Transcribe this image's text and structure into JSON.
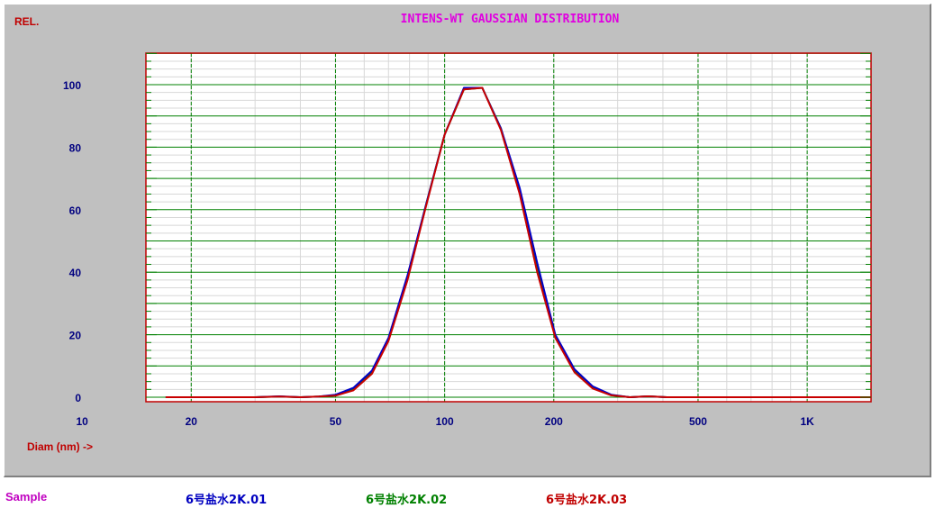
{
  "chart_data": {
    "type": "line",
    "title": "INTENS-WT GAUSSIAN DISTRIBUTION",
    "ylabel": "REL.",
    "xlabel": "Diam (nm) ->",
    "xscale": "log",
    "xlim": [
      15,
      1500
    ],
    "ylim": [
      0,
      110
    ],
    "x_ticks": [
      {
        "value": 10,
        "label": "10"
      },
      {
        "value": 20,
        "label": "20"
      },
      {
        "value": 50,
        "label": "50"
      },
      {
        "value": 100,
        "label": "100"
      },
      {
        "value": 200,
        "label": "200"
      },
      {
        "value": 500,
        "label": "500"
      },
      {
        "value": 1000,
        "label": "1K"
      }
    ],
    "y_ticks": [
      {
        "value": 0,
        "label": "0"
      },
      {
        "value": 20,
        "label": "20"
      },
      {
        "value": 40,
        "label": "40"
      },
      {
        "value": 60,
        "label": "60"
      },
      {
        "value": 80,
        "label": "80"
      },
      {
        "value": 100,
        "label": "100"
      }
    ],
    "grid": true,
    "series": [
      {
        "name": "6号盐水2K.01",
        "color": "#0000c8",
        "points": [
          [
            17,
            0
          ],
          [
            20,
            0
          ],
          [
            30,
            0
          ],
          [
            35,
            0.3
          ],
          [
            40,
            0
          ],
          [
            45,
            0.2
          ],
          [
            50,
            0.8
          ],
          [
            56,
            3
          ],
          [
            63,
            8.5
          ],
          [
            70,
            19
          ],
          [
            79,
            39
          ],
          [
            89,
            62
          ],
          [
            100,
            84
          ],
          [
            113,
            99
          ],
          [
            127,
            99
          ],
          [
            143,
            86
          ],
          [
            161,
            67
          ],
          [
            180,
            43
          ],
          [
            202,
            20
          ],
          [
            228,
            9
          ],
          [
            256,
            3.5
          ],
          [
            288,
            0.8
          ],
          [
            324,
            0
          ],
          [
            364,
            0.3
          ],
          [
            410,
            0
          ],
          [
            500,
            0
          ],
          [
            700,
            0
          ],
          [
            1500,
            0
          ]
        ]
      },
      {
        "name": "6号盐水2K.02",
        "color": "#008000",
        "points": [
          [
            17,
            0
          ],
          [
            20,
            0
          ],
          [
            30,
            0
          ],
          [
            35,
            0.2
          ],
          [
            40,
            0
          ],
          [
            45,
            0.2
          ],
          [
            50,
            0.6
          ],
          [
            56,
            2.5
          ],
          [
            63,
            8
          ],
          [
            70,
            18.5
          ],
          [
            79,
            38
          ],
          [
            89,
            62
          ],
          [
            100,
            84
          ],
          [
            113,
            98.5
          ],
          [
            127,
            99
          ],
          [
            143,
            86
          ],
          [
            161,
            66
          ],
          [
            180,
            41
          ],
          [
            202,
            19.5
          ],
          [
            228,
            8.5
          ],
          [
            256,
            3
          ],
          [
            288,
            0.7
          ],
          [
            324,
            0
          ],
          [
            364,
            0.3
          ],
          [
            410,
            0
          ],
          [
            500,
            0
          ],
          [
            700,
            0
          ],
          [
            1500,
            0
          ]
        ]
      },
      {
        "name": "6号盐水2K.03",
        "color": "#c80000",
        "points": [
          [
            17,
            0
          ],
          [
            20,
            0
          ],
          [
            30,
            0
          ],
          [
            35,
            0.2
          ],
          [
            40,
            0
          ],
          [
            45,
            0.2
          ],
          [
            50,
            0.5
          ],
          [
            56,
            2.2
          ],
          [
            63,
            7.5
          ],
          [
            70,
            18
          ],
          [
            79,
            37.5
          ],
          [
            89,
            61.5
          ],
          [
            100,
            84
          ],
          [
            113,
            98.5
          ],
          [
            127,
            99
          ],
          [
            143,
            85.5
          ],
          [
            161,
            65
          ],
          [
            180,
            40
          ],
          [
            202,
            19
          ],
          [
            228,
            8
          ],
          [
            256,
            2.8
          ],
          [
            288,
            0.6
          ],
          [
            324,
            0
          ],
          [
            364,
            0.3
          ],
          [
            410,
            0
          ],
          [
            500,
            0
          ],
          [
            700,
            0
          ],
          [
            1500,
            0
          ]
        ]
      }
    ]
  },
  "legend": {
    "label": "Sample",
    "entries": [
      "6号盐水2K.01",
      "6号盐水2K.02",
      "6号盐水2K.03"
    ]
  },
  "colors": {
    "panel": "#c0c0c0",
    "title": "#e000e0",
    "axis_text": "#000080",
    "axis_label": "#c00000",
    "grid": "#008000",
    "minor_grid": "#d8d8d8",
    "frame": "#c00000"
  }
}
